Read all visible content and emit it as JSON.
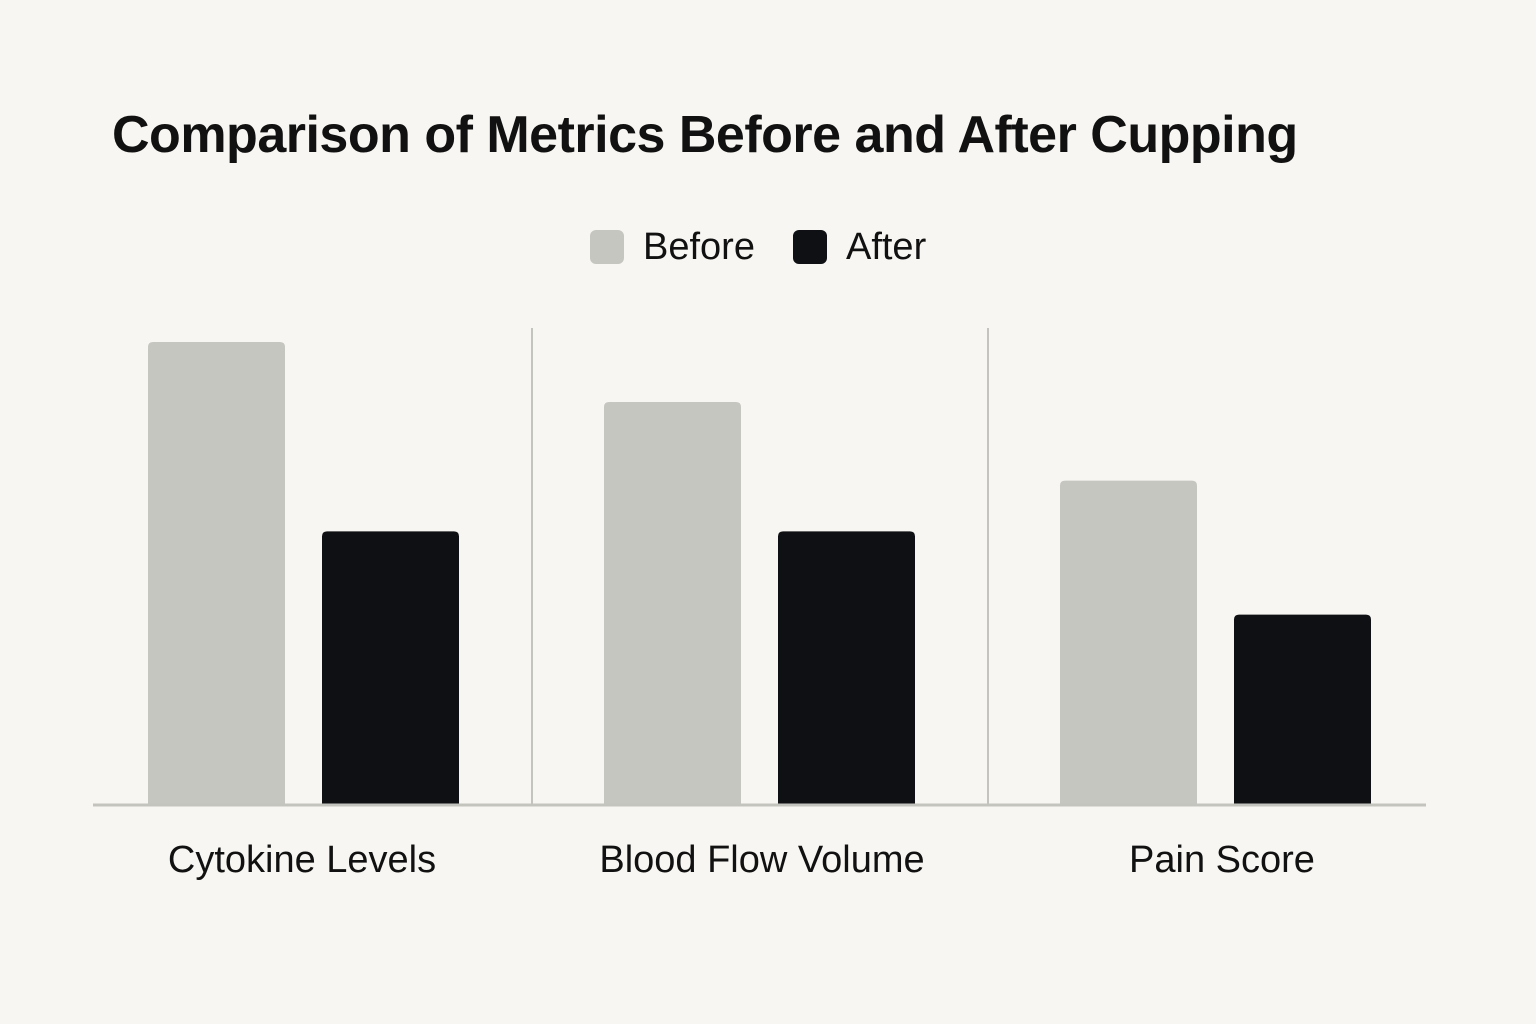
{
  "chart_data": {
    "type": "bar",
    "title": "Comparison of Metrics Before and After Cupping",
    "categories": [
      "Cytokine Levels",
      "Blood Flow Volume",
      "Pain Score"
    ],
    "series": [
      {
        "name": "Before",
        "color": "#c6c6c1",
        "values": [
          100,
          87,
          70
        ]
      },
      {
        "name": "After",
        "color": "#0f1014",
        "values": [
          59,
          59,
          41
        ]
      }
    ],
    "ylim": [
      0,
      100
    ],
    "grid": false,
    "legend": "top-center",
    "separators": true
  }
}
